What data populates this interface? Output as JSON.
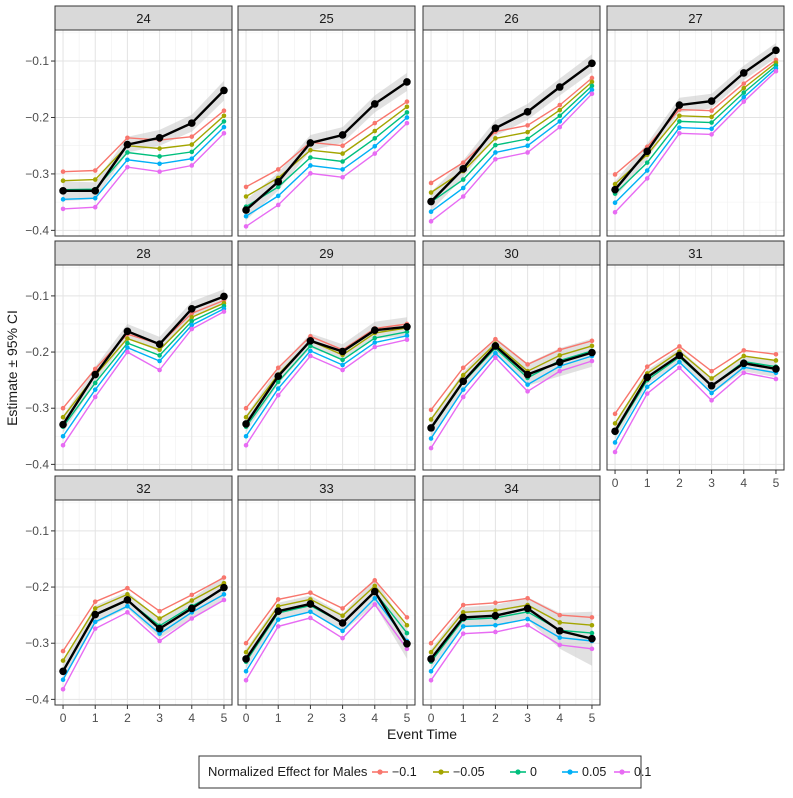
{
  "chart_data": {
    "type": "line",
    "layout": "faceted small multiples, 4 columns x 3 rows, shared axes",
    "xlabel": "Event Time",
    "ylabel": "Estimate ± 95% CI",
    "x": [
      0,
      1,
      2,
      3,
      4,
      5
    ],
    "x_ticks": [
      "0",
      "1",
      "2",
      "3",
      "4",
      "5"
    ],
    "y_ticks": [
      "−0.1",
      "−0.2",
      "−0.3",
      "−0.4"
    ],
    "y_tick_values": [
      -0.1,
      -0.2,
      -0.3,
      -0.4
    ],
    "xlim": [
      -0.25,
      5.25
    ],
    "ylim": [
      -0.41,
      -0.045
    ],
    "grid": true,
    "ci_band": "grey shaded 95% confidence interval around the black estimate line",
    "legend": {
      "title": "Normalized Effect for Males",
      "position": "bottom",
      "entries": [
        {
          "label": "−0.1",
          "color": "#F8766D"
        },
        {
          "label": "−0.05",
          "color": "#A3A500"
        },
        {
          "label": "0",
          "color": "#00BF7D"
        },
        {
          "label": "0.05",
          "color": "#00B0F6"
        },
        {
          "label": "0.1",
          "color": "#E76BF3"
        }
      ]
    },
    "estimate_color": "#000000",
    "panels": [
      {
        "label": "24",
        "estimate": [
          -0.33,
          -0.33,
          -0.248,
          -0.236,
          -0.21,
          -0.152
        ],
        "ci_lower": [
          -0.348,
          -0.345,
          -0.262,
          -0.25,
          -0.225,
          -0.17
        ],
        "ci_upper": [
          -0.313,
          -0.315,
          -0.234,
          -0.222,
          -0.195,
          -0.135
        ],
        "series": [
          [
            -0.296,
            -0.294,
            -0.236,
            -0.24,
            -0.234,
            -0.188
          ],
          [
            -0.312,
            -0.31,
            -0.25,
            -0.255,
            -0.248,
            -0.197
          ],
          [
            -0.328,
            -0.327,
            -0.262,
            -0.269,
            -0.261,
            -0.207
          ],
          [
            -0.345,
            -0.343,
            -0.275,
            -0.282,
            -0.273,
            -0.217
          ],
          [
            -0.362,
            -0.359,
            -0.288,
            -0.296,
            -0.285,
            -0.228
          ]
        ]
      },
      {
        "label": "25",
        "estimate": [
          -0.364,
          -0.314,
          -0.245,
          -0.231,
          -0.176,
          -0.137
        ],
        "ci_lower": [
          -0.382,
          -0.33,
          -0.259,
          -0.245,
          -0.191,
          -0.153
        ],
        "ci_upper": [
          -0.346,
          -0.298,
          -0.231,
          -0.217,
          -0.161,
          -0.121
        ],
        "series": [
          [
            -0.323,
            -0.292,
            -0.244,
            -0.25,
            -0.21,
            -0.172
          ],
          [
            -0.34,
            -0.307,
            -0.258,
            -0.264,
            -0.224,
            -0.181
          ],
          [
            -0.358,
            -0.323,
            -0.271,
            -0.278,
            -0.237,
            -0.191
          ],
          [
            -0.375,
            -0.339,
            -0.285,
            -0.292,
            -0.251,
            -0.2
          ],
          [
            -0.393,
            -0.355,
            -0.299,
            -0.306,
            -0.264,
            -0.21
          ]
        ]
      },
      {
        "label": "26",
        "estimate": [
          -0.349,
          -0.291,
          -0.219,
          -0.19,
          -0.146,
          -0.104
        ],
        "ci_lower": [
          -0.366,
          -0.306,
          -0.233,
          -0.204,
          -0.161,
          -0.12
        ],
        "ci_upper": [
          -0.332,
          -0.276,
          -0.205,
          -0.176,
          -0.131,
          -0.088
        ],
        "series": [
          [
            -0.316,
            -0.28,
            -0.225,
            -0.214,
            -0.178,
            -0.13
          ],
          [
            -0.333,
            -0.295,
            -0.237,
            -0.226,
            -0.187,
            -0.137
          ],
          [
            -0.35,
            -0.31,
            -0.249,
            -0.238,
            -0.197,
            -0.144
          ],
          [
            -0.367,
            -0.325,
            -0.262,
            -0.25,
            -0.207,
            -0.151
          ],
          [
            -0.384,
            -0.34,
            -0.274,
            -0.262,
            -0.217,
            -0.158
          ]
        ]
      },
      {
        "label": "27",
        "estimate": [
          -0.328,
          -0.26,
          -0.178,
          -0.171,
          -0.121,
          -0.081
        ],
        "ci_lower": [
          -0.343,
          -0.274,
          -0.191,
          -0.184,
          -0.134,
          -0.094
        ],
        "ci_upper": [
          -0.313,
          -0.246,
          -0.165,
          -0.158,
          -0.108,
          -0.068
        ],
        "series": [
          [
            -0.301,
            -0.252,
            -0.186,
            -0.188,
            -0.14,
            -0.098
          ],
          [
            -0.318,
            -0.266,
            -0.197,
            -0.199,
            -0.148,
            -0.103
          ],
          [
            -0.335,
            -0.28,
            -0.207,
            -0.209,
            -0.156,
            -0.108
          ],
          [
            -0.351,
            -0.294,
            -0.218,
            -0.22,
            -0.164,
            -0.113
          ],
          [
            -0.368,
            -0.308,
            -0.228,
            -0.23,
            -0.172,
            -0.118
          ]
        ]
      },
      {
        "label": "28",
        "estimate": [
          -0.329,
          -0.24,
          -0.163,
          -0.186,
          -0.123,
          -0.101
        ],
        "ci_lower": [
          -0.344,
          -0.254,
          -0.176,
          -0.199,
          -0.136,
          -0.114
        ],
        "ci_upper": [
          -0.314,
          -0.226,
          -0.15,
          -0.173,
          -0.11,
          -0.088
        ],
        "series": [
          [
            -0.3,
            -0.23,
            -0.168,
            -0.186,
            -0.131,
            -0.108
          ],
          [
            -0.316,
            -0.242,
            -0.176,
            -0.196,
            -0.138,
            -0.113
          ],
          [
            -0.333,
            -0.255,
            -0.184,
            -0.206,
            -0.145,
            -0.118
          ],
          [
            -0.35,
            -0.267,
            -0.192,
            -0.216,
            -0.152,
            -0.123
          ],
          [
            -0.366,
            -0.28,
            -0.2,
            -0.232,
            -0.159,
            -0.128
          ]
        ]
      },
      {
        "label": "29",
        "estimate": [
          -0.328,
          -0.243,
          -0.18,
          -0.199,
          -0.161,
          -0.155
        ],
        "ci_lower": [
          -0.343,
          -0.257,
          -0.193,
          -0.212,
          -0.176,
          -0.172
        ],
        "ci_upper": [
          -0.313,
          -0.229,
          -0.167,
          -0.186,
          -0.146,
          -0.138
        ],
        "series": [
          [
            -0.3,
            -0.228,
            -0.172,
            -0.196,
            -0.158,
            -0.15
          ],
          [
            -0.316,
            -0.24,
            -0.18,
            -0.205,
            -0.166,
            -0.157
          ],
          [
            -0.333,
            -0.253,
            -0.189,
            -0.214,
            -0.175,
            -0.164
          ],
          [
            -0.35,
            -0.265,
            -0.198,
            -0.223,
            -0.183,
            -0.171
          ],
          [
            -0.366,
            -0.277,
            -0.207,
            -0.232,
            -0.191,
            -0.178
          ]
        ]
      },
      {
        "label": "30",
        "estimate": [
          -0.335,
          -0.252,
          -0.189,
          -0.24,
          -0.218,
          -0.201
        ],
        "ci_lower": [
          -0.353,
          -0.268,
          -0.204,
          -0.26,
          -0.243,
          -0.226
        ],
        "ci_upper": [
          -0.317,
          -0.236,
          -0.174,
          -0.22,
          -0.193,
          -0.176
        ],
        "series": [
          [
            -0.303,
            -0.228,
            -0.177,
            -0.222,
            -0.196,
            -0.18
          ],
          [
            -0.32,
            -0.241,
            -0.185,
            -0.234,
            -0.206,
            -0.189
          ],
          [
            -0.337,
            -0.254,
            -0.193,
            -0.246,
            -0.215,
            -0.198
          ],
          [
            -0.354,
            -0.267,
            -0.202,
            -0.258,
            -0.225,
            -0.207
          ],
          [
            -0.371,
            -0.28,
            -0.21,
            -0.27,
            -0.234,
            -0.216
          ]
        ]
      },
      {
        "label": "31",
        "estimate": [
          -0.341,
          -0.245,
          -0.206,
          -0.26,
          -0.22,
          -0.23
        ],
        "ci_lower": [
          -0.356,
          -0.258,
          -0.218,
          -0.274,
          -0.234,
          -0.245
        ],
        "ci_upper": [
          -0.326,
          -0.232,
          -0.194,
          -0.246,
          -0.206,
          -0.215
        ],
        "series": [
          [
            -0.31,
            -0.226,
            -0.19,
            -0.234,
            -0.197,
            -0.204
          ],
          [
            -0.327,
            -0.238,
            -0.199,
            -0.247,
            -0.207,
            -0.215
          ],
          [
            -0.344,
            -0.25,
            -0.209,
            -0.26,
            -0.217,
            -0.226
          ],
          [
            -0.361,
            -0.262,
            -0.218,
            -0.273,
            -0.227,
            -0.237
          ],
          [
            -0.378,
            -0.274,
            -0.228,
            -0.286,
            -0.237,
            -0.248
          ]
        ]
      },
      {
        "label": "32",
        "estimate": [
          -0.35,
          -0.249,
          -0.223,
          -0.274,
          -0.238,
          -0.201
        ],
        "ci_lower": [
          -0.368,
          -0.265,
          -0.238,
          -0.291,
          -0.256,
          -0.222
        ],
        "ci_upper": [
          -0.332,
          -0.233,
          -0.208,
          -0.257,
          -0.22,
          -0.18
        ],
        "series": [
          [
            -0.314,
            -0.226,
            -0.202,
            -0.243,
            -0.214,
            -0.183
          ],
          [
            -0.331,
            -0.238,
            -0.213,
            -0.256,
            -0.224,
            -0.193
          ],
          [
            -0.348,
            -0.25,
            -0.224,
            -0.269,
            -0.234,
            -0.203
          ],
          [
            -0.365,
            -0.262,
            -0.234,
            -0.283,
            -0.245,
            -0.213
          ],
          [
            -0.382,
            -0.274,
            -0.245,
            -0.296,
            -0.256,
            -0.223
          ]
        ]
      },
      {
        "label": "33",
        "estimate": [
          -0.328,
          -0.243,
          -0.23,
          -0.264,
          -0.208,
          -0.301
        ],
        "ci_lower": [
          -0.345,
          -0.258,
          -0.245,
          -0.28,
          -0.232,
          -0.328
        ],
        "ci_upper": [
          -0.311,
          -0.228,
          -0.215,
          -0.248,
          -0.184,
          -0.274
        ],
        "series": [
          [
            -0.3,
            -0.222,
            -0.21,
            -0.238,
            -0.188,
            -0.254
          ],
          [
            -0.316,
            -0.234,
            -0.222,
            -0.251,
            -0.198,
            -0.268
          ],
          [
            -0.333,
            -0.246,
            -0.233,
            -0.264,
            -0.209,
            -0.282
          ],
          [
            -0.35,
            -0.258,
            -0.244,
            -0.278,
            -0.22,
            -0.296
          ],
          [
            -0.366,
            -0.27,
            -0.255,
            -0.291,
            -0.231,
            -0.31
          ]
        ]
      },
      {
        "label": "34",
        "estimate": [
          -0.328,
          -0.254,
          -0.251,
          -0.238,
          -0.278,
          -0.292
        ],
        "ci_lower": [
          -0.345,
          -0.272,
          -0.27,
          -0.258,
          -0.31,
          -0.34
        ],
        "ci_upper": [
          -0.311,
          -0.236,
          -0.232,
          -0.218,
          -0.246,
          -0.244
        ],
        "series": [
          [
            -0.3,
            -0.232,
            -0.228,
            -0.22,
            -0.25,
            -0.254
          ],
          [
            -0.316,
            -0.245,
            -0.242,
            -0.232,
            -0.263,
            -0.268
          ],
          [
            -0.333,
            -0.258,
            -0.255,
            -0.244,
            -0.277,
            -0.282
          ],
          [
            -0.35,
            -0.27,
            -0.268,
            -0.257,
            -0.29,
            -0.296
          ],
          [
            -0.366,
            -0.283,
            -0.28,
            -0.268,
            -0.303,
            -0.31
          ]
        ]
      }
    ]
  }
}
